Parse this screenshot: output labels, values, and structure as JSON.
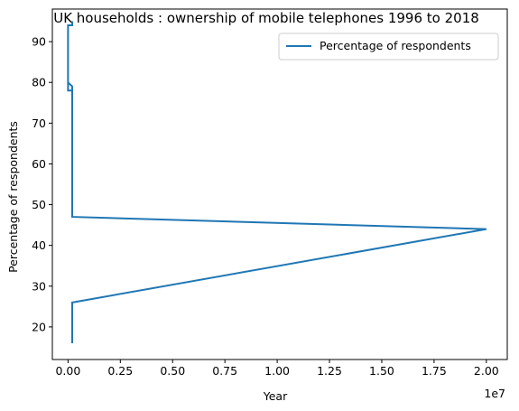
{
  "chart_data": {
    "type": "line",
    "title": "UK households : ownership of mobile telephones 1996 to 2018",
    "xlabel": "Year",
    "ylabel": "Percentage of respondents",
    "x_offset_label": "1e7",
    "xlim": [
      -750000,
      21000000
    ],
    "ylim": [
      12,
      98
    ],
    "x_ticks": [
      0,
      2500000,
      5000000,
      7500000,
      10000000,
      12500000,
      15000000,
      17500000,
      20000000
    ],
    "x_tick_labels": [
      "0.00",
      "0.25",
      "0.50",
      "0.75",
      "1.00",
      "1.25",
      "1.50",
      "1.75",
      "2.00"
    ],
    "y_ticks": [
      20,
      30,
      40,
      50,
      60,
      70,
      80,
      90
    ],
    "y_tick_labels": [
      "20",
      "30",
      "40",
      "50",
      "60",
      "70",
      "80",
      "90"
    ],
    "grid": false,
    "legend_position": "top-right",
    "colors": {
      "series": "#1f77b4"
    },
    "series": [
      {
        "name": "Percentage of respondents",
        "x": [
          200000,
          200000,
          200000,
          200000,
          20000000,
          200000,
          200000,
          200000,
          200000,
          0,
          0,
          0,
          200000,
          200000,
          0,
          0,
          200000,
          200000
        ],
        "y": [
          16,
          20,
          26,
          26,
          44,
          47,
          47,
          79,
          79,
          80,
          81,
          78,
          78,
          79,
          80,
          94,
          94,
          95
        ]
      }
    ]
  }
}
